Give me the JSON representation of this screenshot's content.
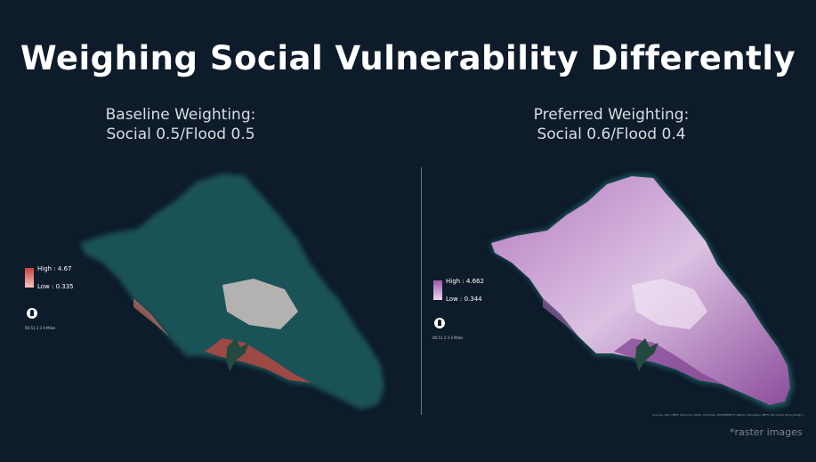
{
  "title": "Weighing Social Vulnerability Differently",
  "left": {
    "subtitle_line1": "Baseline Weighting:",
    "subtitle_line2": "Social 0.5/Flood 0.5",
    "legend_high": "High : 4.67",
    "legend_low": "Low : 0.335",
    "scale_text": "00.51  2   3   4 Miles",
    "ramp_high_color": "#c8433e",
    "ramp_low_color": "#f3c7bf"
  },
  "right": {
    "subtitle_line1": "Preferred Weighting:",
    "subtitle_line2": "Social 0.6/Flood 0.4",
    "legend_high": "High : 4.662",
    "legend_low": "Low : 0.344",
    "scale_text": "00.51  2   3   4 Miles",
    "ramp_high_color": "#9a59a8",
    "ramp_low_color": "#ead7ee"
  },
  "credits": "Sources: Esri, HERE, DeLorme, USGS, Intermap, INCREMENT P, NRCan, Esri Japan, METI, Esri China (Hong Kong), Esri Korea, Esri (Thailand), MapmyIndia, NGCC, OpenStreetMap contributors, and the GIS User Community",
  "note": "*raster images"
}
